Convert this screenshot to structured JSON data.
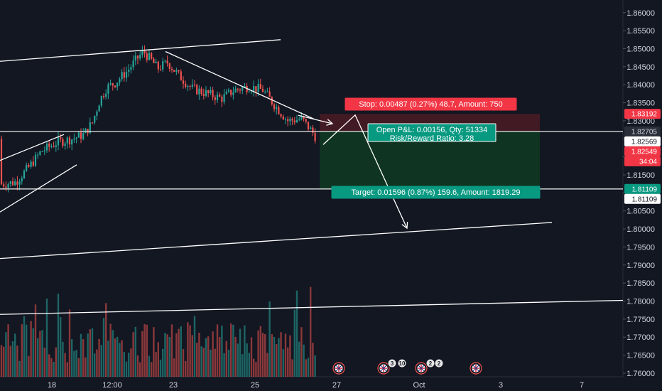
{
  "chart_data": {
    "type": "candlestick",
    "title": "",
    "y_range": [
      1.759,
      1.8635
    ],
    "y_ticks": [
      "1.86000",
      "1.85500",
      "1.85000",
      "1.84500",
      "1.84000",
      "1.83500",
      "1.83000",
      "1.82500",
      "1.82000",
      "1.81500",
      "1.81000",
      "1.80500",
      "1.80000",
      "1.79500",
      "1.79000",
      "1.78500",
      "1.78000",
      "1.77500",
      "1.77000",
      "1.76500",
      "1.76000"
    ],
    "x_ticks": [
      "18",
      "12:00",
      "23",
      "25",
      "27",
      "Oct",
      "3",
      "7"
    ],
    "price_tags": [
      {
        "label": "1.83192",
        "value": 1.83192,
        "bg": "#f23645",
        "fg": "#ffffff"
      },
      {
        "label": "1.82705",
        "value": 1.82705,
        "bg": "#2a2e39",
        "fg": "#d1d4dc"
      },
      {
        "label": "1.82569",
        "value": 1.82569,
        "bg": "#ffffff",
        "fg": "#131722"
      },
      {
        "label": "1.82549",
        "value": 1.82549,
        "bg": "#f23645",
        "fg": "#ffffff"
      },
      {
        "label": "34:04",
        "value": 1.8232,
        "bg": "#f23645",
        "fg": "#ffffff"
      },
      {
        "label": "1.81109",
        "value": 1.81109,
        "bg": "#089981",
        "fg": "#ffffff"
      },
      {
        "label": "1.81109",
        "value": 1.8085,
        "bg": "#ffffff",
        "fg": "#131722"
      }
    ],
    "position": {
      "side": "short",
      "entry": 1.82705,
      "stop": 1.83192,
      "target": 1.81109,
      "stop_label": "Stop: 0.00487 (0.27%) 48.7, Amount: 750",
      "pnl_label": "Open P&L: 0.00156, Qty: 51334",
      "rr_label": "Risk/Reward Ratio: 3.28",
      "target_label": "Target: 0.01596 (0.87%) 159.6, Amount: 1819.29"
    },
    "horizontal_lines": [
      1.82705,
      1.81109
    ],
    "event_badges": [
      "3",
      "10",
      "2",
      "2"
    ],
    "colors": {
      "up": "#26a69a",
      "down": "#ef5350",
      "background": "#131722",
      "stop_zone": "#4a1b23",
      "target_zone": "#0f3a21"
    }
  }
}
